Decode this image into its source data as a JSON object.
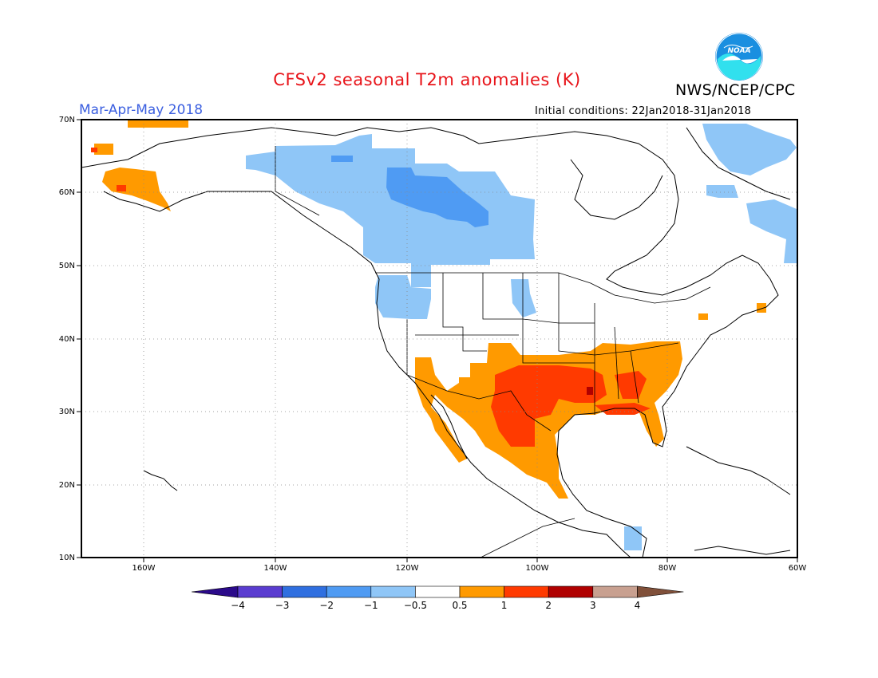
{
  "header": {
    "title": "CFSv2 seasonal T2m anomalies (K)",
    "season": "Mar-Apr-May 2018",
    "agency": "NWS/NCEP/CPC",
    "initial_conditions": "Initial conditions: 22Jan2018-31Jan2018",
    "logo_text": "NOAA"
  },
  "map": {
    "lat_range": [
      10,
      70
    ],
    "lon_range": [
      -170,
      -60
    ],
    "lat_labels": [
      "70N",
      "60N",
      "50N",
      "40N",
      "30N",
      "20N",
      "10N"
    ],
    "lon_labels": [
      "160W",
      "140W",
      "120W",
      "100W",
      "80W",
      "60W"
    ],
    "grid": "dotted"
  },
  "colorbar": {
    "labels": [
      "-4",
      "-3",
      "-2",
      "-1",
      "-0.5",
      "0.5",
      "1",
      "2",
      "3",
      "4"
    ],
    "colors": [
      "#2b0a8a",
      "#5a3cd0",
      "#2f6fe0",
      "#4f9bf3",
      "#8fc6f7",
      "#ffffff",
      "#ff9a00",
      "#ff3a00",
      "#b00000",
      "#c8a090",
      "#80503a"
    ]
  }
}
